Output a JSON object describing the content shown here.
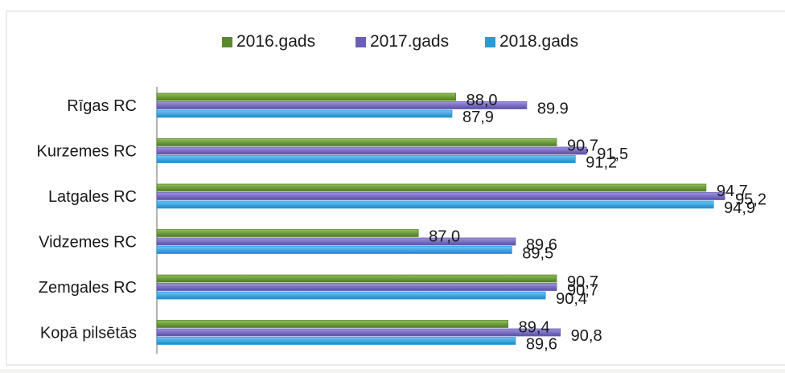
{
  "chart_data": {
    "type": "bar",
    "orientation": "horizontal",
    "categories": [
      "Rīgas RC",
      "Kurzemes RC",
      "Latgales RC",
      "Vidzemes RC",
      "Zemgales RC",
      "Kopā pilsētās"
    ],
    "series": [
      {
        "name": "2016.gads",
        "color": "#5b8a2e",
        "values": [
          88.0,
          90.7,
          94.7,
          87.0,
          90.7,
          89.4
        ],
        "labels": [
          "88,0",
          "90,7",
          "94,7",
          "87,0",
          "90,7",
          "89,4"
        ]
      },
      {
        "name": "2017.gads",
        "color": "#6a5fb4",
        "values": [
          89.9,
          91.5,
          95.2,
          89.6,
          90.7,
          90.8
        ],
        "labels": [
          "89.9",
          "91,5",
          "95,2",
          "89,6",
          "90,7",
          "90,8"
        ]
      },
      {
        "name": "2018.gads",
        "color": "#2a9ad8",
        "values": [
          87.9,
          91.2,
          94.9,
          89.5,
          90.4,
          89.6
        ],
        "labels": [
          "87,9",
          "91,2",
          "94,9",
          "89,5",
          "90,4",
          "89,6"
        ]
      }
    ],
    "xlim": [
      80,
      95.5
    ],
    "legend_position": "top",
    "grid": false
  }
}
